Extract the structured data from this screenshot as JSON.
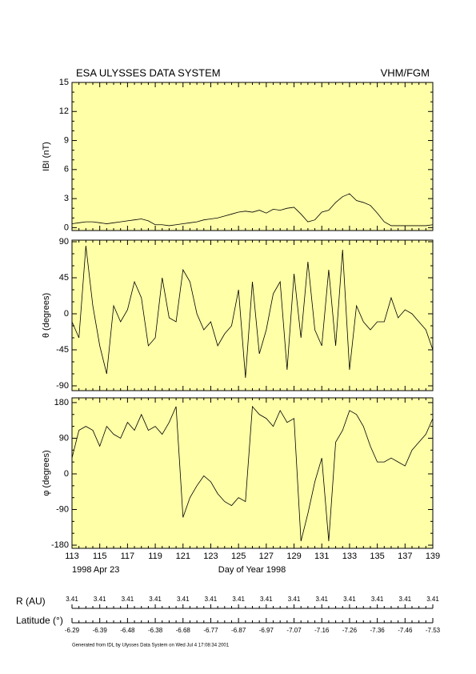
{
  "header": {
    "title": "ESA ULYSSES DATA SYSTEM",
    "instrument": "VHM/FGM"
  },
  "chart_data": [
    {
      "type": "line",
      "ylabel": "IBI (nT)",
      "xlim": [
        113,
        139
      ],
      "xticks": [
        113,
        115,
        117,
        119,
        121,
        123,
        125,
        127,
        129,
        131,
        133,
        135,
        137,
        139
      ],
      "ylim": [
        -0.3,
        15
      ],
      "yticks": [
        0,
        3,
        6,
        9,
        12,
        15
      ],
      "x": [
        113,
        113.5,
        114,
        114.5,
        115,
        115.5,
        116,
        116.5,
        117,
        117.5,
        118,
        118.5,
        119,
        119.5,
        120,
        120.5,
        121,
        121.5,
        122,
        122.5,
        123,
        123.5,
        124,
        124.5,
        125,
        125.5,
        126,
        126.5,
        127,
        127.5,
        128,
        128.5,
        129,
        129.5,
        130,
        130.5,
        131,
        131.5,
        132,
        132.5,
        133,
        133.5,
        134,
        134.5,
        135,
        135.5,
        136,
        136.5,
        137,
        137.5,
        138,
        138.5,
        139
      ],
      "series": [
        {
          "color": "#000000",
          "values": [
            0.4,
            0.5,
            0.6,
            0.6,
            0.5,
            0.4,
            0.5,
            0.6,
            0.7,
            0.8,
            0.9,
            0.7,
            0.3,
            0.3,
            0.2,
            0.3,
            0.4,
            0.5,
            0.6,
            0.8,
            0.9,
            1.0,
            1.2,
            1.4,
            1.6,
            1.7,
            1.6,
            1.8,
            1.5,
            1.9,
            1.8,
            2.0,
            2.1,
            1.4,
            0.6,
            0.8,
            1.6,
            1.8,
            2.6,
            3.2,
            3.5,
            2.8,
            2.6,
            2.3,
            1.5,
            0.6,
            0.2,
            0.2,
            0.2,
            0.2,
            0.2,
            0.2,
            0.3
          ]
        }
      ]
    },
    {
      "type": "line",
      "ylabel": "θ (degrees)",
      "xlim": [
        113,
        139
      ],
      "xticks": [
        113,
        115,
        117,
        119,
        121,
        123,
        125,
        127,
        129,
        131,
        133,
        135,
        137,
        139
      ],
      "ylim": [
        -96,
        92
      ],
      "yticks": [
        90,
        45,
        0,
        -45,
        -90
      ],
      "x": [
        113,
        113.5,
        114,
        114.5,
        115,
        115.5,
        116,
        116.5,
        117,
        117.5,
        118,
        118.5,
        119,
        119.5,
        120,
        120.5,
        121,
        121.5,
        122,
        122.5,
        123,
        123.5,
        124,
        124.5,
        125,
        125.5,
        126,
        126.5,
        127,
        127.5,
        128,
        128.5,
        129,
        129.5,
        130,
        130.5,
        131,
        131.5,
        132,
        132.5,
        133,
        133.5,
        134,
        134.5,
        135,
        135.5,
        136,
        136.5,
        137,
        137.5,
        138,
        138.5,
        139
      ],
      "series": [
        {
          "color": "#000000",
          "values": [
            -10,
            -30,
            85,
            10,
            -40,
            -75,
            10,
            -10,
            5,
            40,
            20,
            -40,
            -30,
            45,
            -5,
            -10,
            55,
            40,
            0,
            -20,
            -10,
            -40,
            -25,
            -15,
            30,
            -80,
            40,
            -50,
            -20,
            25,
            40,
            -70,
            50,
            -30,
            65,
            -20,
            -40,
            55,
            -40,
            80,
            -70,
            10,
            -10,
            -20,
            -10,
            -10,
            20,
            -5,
            5,
            0,
            -10,
            -20,
            -45
          ]
        }
      ]
    },
    {
      "type": "line",
      "ylabel": "φ (degrees)",
      "xlabel": "Day of Year 1998",
      "start_date": "1998 Apr 23",
      "xlim": [
        113,
        139
      ],
      "xticks": [
        113,
        115,
        117,
        119,
        121,
        123,
        125,
        127,
        129,
        131,
        133,
        135,
        137,
        139
      ],
      "ylim": [
        -188,
        192
      ],
      "yticks": [
        180,
        90,
        0,
        -90,
        -180
      ],
      "x": [
        113,
        113.5,
        114,
        114.5,
        115,
        115.5,
        116,
        116.5,
        117,
        117.5,
        118,
        118.5,
        119,
        119.5,
        120,
        120.5,
        121,
        121.5,
        122,
        122.5,
        123,
        123.5,
        124,
        124.5,
        125,
        125.5,
        126,
        126.5,
        127,
        127.5,
        128,
        128.5,
        129,
        129.5,
        130,
        130.5,
        131,
        131.5,
        132,
        132.5,
        133,
        133.5,
        134,
        134.5,
        135,
        135.5,
        136,
        136.5,
        137,
        137.5,
        138,
        138.5,
        139
      ],
      "series": [
        {
          "color": "#000000",
          "values": [
            40,
            110,
            120,
            110,
            70,
            120,
            100,
            90,
            130,
            110,
            150,
            110,
            120,
            100,
            130,
            170,
            -110,
            -60,
            -30,
            -5,
            -20,
            -50,
            -70,
            -80,
            -60,
            -70,
            170,
            150,
            140,
            120,
            160,
            130,
            140,
            -170,
            -100,
            -20,
            40,
            -170,
            80,
            110,
            160,
            150,
            120,
            70,
            30,
            30,
            40,
            30,
            20,
            60,
            80,
            100,
            140
          ]
        }
      ]
    }
  ],
  "orbit": {
    "r_label": "R (AU)",
    "r_values": [
      "3.41",
      "3.41",
      "3.41",
      "3.41",
      "3.41",
      "3.41",
      "3.41",
      "3.41",
      "3.41",
      "3.41",
      "3.41",
      "3.41",
      "3.41",
      "3.41"
    ],
    "lat_label": "Latitude (°)",
    "lat_values": [
      "-6.29",
      "-6.39",
      "-6.48",
      "-6.38",
      "-6.68",
      "-6.77",
      "-6.87",
      "-6.97",
      "-7.07",
      "-7.16",
      "-7.26",
      "-7.36",
      "-7.46",
      "-7.53"
    ]
  },
  "footer": "Generated from IDL by Ulysses Data System on Wed Jul 4 17:08:34 2001"
}
